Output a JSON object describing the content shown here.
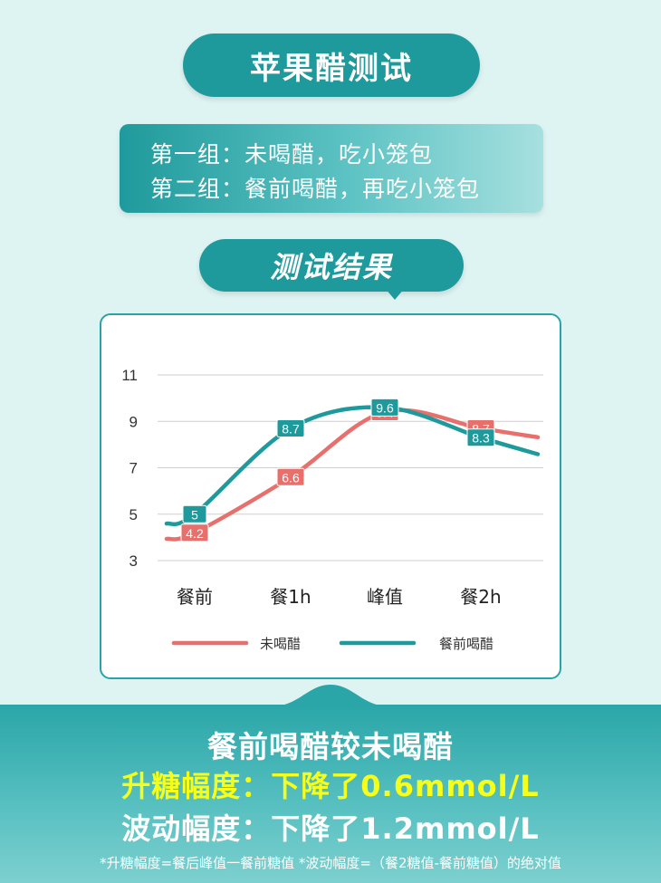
{
  "header": {
    "title": "苹果醋测试"
  },
  "groups": {
    "group1": "第一组：未喝醋，吃小笼包",
    "group2": "第二组：餐前喝醋，再吃小笼包"
  },
  "result_title": "测试结果",
  "colors": {
    "teal": "#1f9a9c",
    "coral": "#e8706c",
    "highlight": "#f6ff1a"
  },
  "chart_data": {
    "type": "line",
    "categories": [
      "餐前",
      "餐1h",
      "峰值",
      "餐2h"
    ],
    "ylim": [
      3,
      11
    ],
    "yticks": [
      3,
      5,
      7,
      9,
      11
    ],
    "grid": true,
    "legend_position": "bottom",
    "series": [
      {
        "name": "未喝醋",
        "color": "#e8706c",
        "values": [
          4.2,
          6.6,
          9.4,
          8.7
        ],
        "labels": [
          "4.2",
          "6.6",
          "9.4",
          "8.7"
        ]
      },
      {
        "name": "餐前喝醋",
        "color": "#1f9a9c",
        "values": [
          5,
          8.7,
          9.6,
          8.3
        ],
        "labels": [
          "5",
          "8.7",
          "9.6",
          "8.3"
        ]
      }
    ]
  },
  "summary": {
    "line1": "餐前喝醋较未喝醋",
    "line2": "升糖幅度：下降了0.6mmol/L",
    "line3": "波动幅度：下降了1.2mmol/L"
  },
  "footnote": "*升糖幅度=餐后峰值一餐前糖值   *波动幅度=（餐2糖值-餐前糖值）的绝对值"
}
